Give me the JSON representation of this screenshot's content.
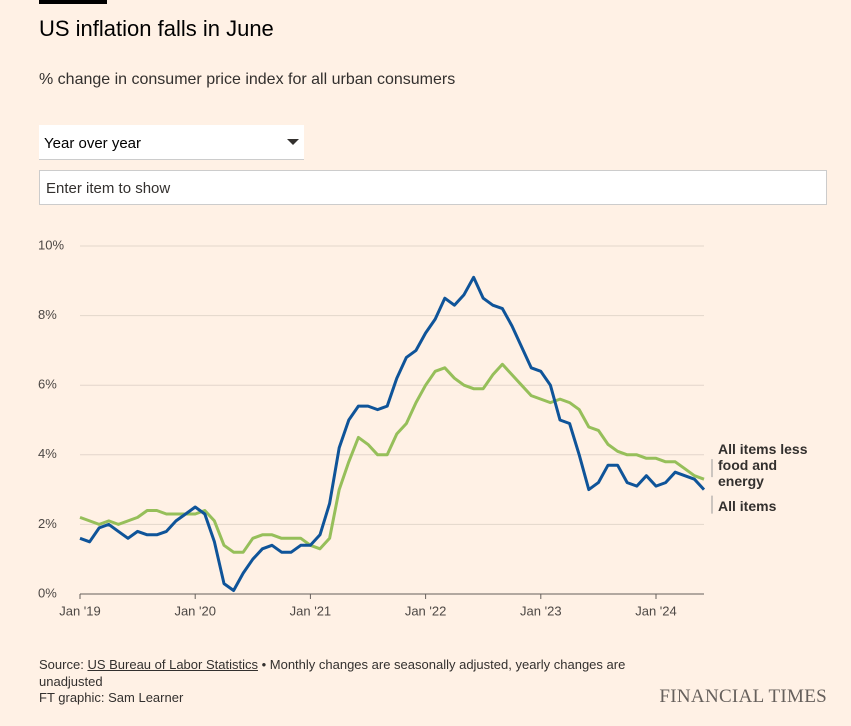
{
  "chart_data": {
    "type": "line",
    "title": "US inflation falls in June",
    "subtitle": "% change in consumer price index for all urban consumers",
    "x": [
      "2019-01",
      "2019-02",
      "2019-03",
      "2019-04",
      "2019-05",
      "2019-06",
      "2019-07",
      "2019-08",
      "2019-09",
      "2019-10",
      "2019-11",
      "2019-12",
      "2020-01",
      "2020-02",
      "2020-03",
      "2020-04",
      "2020-05",
      "2020-06",
      "2020-07",
      "2020-08",
      "2020-09",
      "2020-10",
      "2020-11",
      "2020-12",
      "2021-01",
      "2021-02",
      "2021-03",
      "2021-04",
      "2021-05",
      "2021-06",
      "2021-07",
      "2021-08",
      "2021-09",
      "2021-10",
      "2021-11",
      "2021-12",
      "2022-01",
      "2022-02",
      "2022-03",
      "2022-04",
      "2022-05",
      "2022-06",
      "2022-07",
      "2022-08",
      "2022-09",
      "2022-10",
      "2022-11",
      "2022-12",
      "2023-01",
      "2023-02",
      "2023-03",
      "2023-04",
      "2023-05",
      "2023-06",
      "2023-07",
      "2023-08",
      "2023-09",
      "2023-10",
      "2023-11",
      "2023-12",
      "2024-01",
      "2024-02",
      "2024-03",
      "2024-04",
      "2024-05",
      "2024-06"
    ],
    "series": [
      {
        "name": "All items less food and energy",
        "color": "#96bf5a",
        "values": [
          2.2,
          2.1,
          2.0,
          2.1,
          2.0,
          2.1,
          2.2,
          2.4,
          2.4,
          2.3,
          2.3,
          2.3,
          2.3,
          2.4,
          2.1,
          1.4,
          1.2,
          1.2,
          1.6,
          1.7,
          1.7,
          1.6,
          1.6,
          1.6,
          1.4,
          1.3,
          1.6,
          3.0,
          3.8,
          4.5,
          4.3,
          4.0,
          4.0,
          4.6,
          4.9,
          5.5,
          6.0,
          6.4,
          6.5,
          6.2,
          6.0,
          5.9,
          5.9,
          6.3,
          6.6,
          6.3,
          6.0,
          5.7,
          5.6,
          5.5,
          5.6,
          5.5,
          5.3,
          4.8,
          4.7,
          4.3,
          4.1,
          4.0,
          4.0,
          3.9,
          3.9,
          3.8,
          3.8,
          3.6,
          3.4,
          3.3
        ]
      },
      {
        "name": "All items",
        "color": "#0f5499",
        "values": [
          1.6,
          1.5,
          1.9,
          2.0,
          1.8,
          1.6,
          1.8,
          1.7,
          1.7,
          1.8,
          2.1,
          2.3,
          2.5,
          2.3,
          1.5,
          0.3,
          0.1,
          0.6,
          1.0,
          1.3,
          1.4,
          1.2,
          1.2,
          1.4,
          1.4,
          1.7,
          2.6,
          4.2,
          5.0,
          5.4,
          5.4,
          5.3,
          5.4,
          6.2,
          6.8,
          7.0,
          7.5,
          7.9,
          8.5,
          8.3,
          8.6,
          9.1,
          8.5,
          8.3,
          8.2,
          7.7,
          7.1,
          6.5,
          6.4,
          6.0,
          5.0,
          4.9,
          4.0,
          3.0,
          3.2,
          3.7,
          3.7,
          3.2,
          3.1,
          3.4,
          3.1,
          3.2,
          3.5,
          3.4,
          3.3,
          3.0
        ]
      }
    ],
    "ylim": [
      0,
      10
    ],
    "yticks": [
      {
        "value": 0,
        "label": "0%"
      },
      {
        "value": 2,
        "label": "2%"
      },
      {
        "value": 4,
        "label": "4%"
      },
      {
        "value": 6,
        "label": "6%"
      },
      {
        "value": 8,
        "label": "8%"
      },
      {
        "value": 10,
        "label": "10%"
      }
    ],
    "xticks": [
      {
        "value": "2019-01",
        "label": "Jan '19"
      },
      {
        "value": "2020-01",
        "label": "Jan '20"
      },
      {
        "value": "2021-01",
        "label": "Jan '21"
      },
      {
        "value": "2022-01",
        "label": "Jan '22"
      },
      {
        "value": "2023-01",
        "label": "Jan '23"
      },
      {
        "value": "2024-01",
        "label": "Jan '24"
      }
    ],
    "grid": true,
    "legend": "right"
  },
  "controls": {
    "dropdown": "Year over year",
    "search_placeholder": "Enter item to show"
  },
  "footer": {
    "source_prefix": "Source:",
    "source_link": "US Bureau of Labor Statistics",
    "source_note": "• Monthly changes are seasonally adjusted, yearly changes are unadjusted",
    "credit": "FT graphic: Sam Learner",
    "brand": "FINANCIAL TIMES"
  }
}
